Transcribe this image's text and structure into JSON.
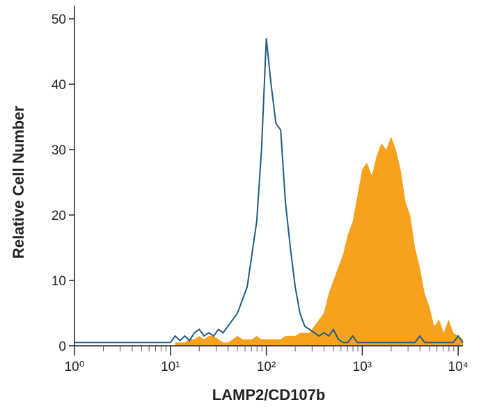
{
  "chart_data": {
    "type": "histogram-overlay",
    "xlabel": "LAMP2/CD107b",
    "ylabel": "Relative Cell Number",
    "xscale": "log",
    "xlim": [
      1,
      11200
    ],
    "ylim": [
      0,
      50
    ],
    "xticks": [
      {
        "value": 1,
        "label": "10⁰"
      },
      {
        "value": 10,
        "label": "10¹"
      },
      {
        "value": 100,
        "label": "10²"
      },
      {
        "value": 1000,
        "label": "10³"
      },
      {
        "value": 10000,
        "label": "10⁴"
      }
    ],
    "yticks": [
      0,
      10,
      20,
      30,
      40,
      50
    ],
    "x": [
      1,
      10,
      11.2,
      12.6,
      14.1,
      15.8,
      17.8,
      20,
      22.4,
      25.1,
      28.2,
      31.6,
      35.5,
      39.8,
      44.7,
      50.1,
      56.2,
      63.1,
      70.8,
      79.4,
      89.1,
      100,
      112,
      126,
      141,
      158,
      178,
      200,
      224,
      251,
      282,
      316,
      355,
      398,
      447,
      501,
      562,
      631,
      708,
      794,
      891,
      1000,
      1120,
      1260,
      1410,
      1580,
      1780,
      2000,
      2240,
      2510,
      2820,
      3160,
      3550,
      3980,
      4470,
      5010,
      5620,
      6310,
      7080,
      7940,
      8910,
      10000,
      11200
    ],
    "series": [
      {
        "style": "filled",
        "color": "#f7a11e",
        "values": [
          null,
          null,
          0.5,
          0.5,
          0.5,
          1,
          1,
          1.5,
          1,
          1.5,
          1.5,
          1,
          0.5,
          0.5,
          1,
          1.5,
          1,
          1,
          1,
          1.5,
          1,
          1,
          1,
          1,
          1,
          1.5,
          1.5,
          1.5,
          2,
          2,
          2,
          3,
          4,
          5,
          8,
          10,
          12,
          14,
          17,
          19,
          23,
          27,
          28,
          26,
          29,
          31,
          30,
          32,
          30,
          27,
          22,
          20,
          15,
          12,
          8,
          6,
          3,
          4,
          2,
          4,
          2,
          1.5,
          1
        ]
      },
      {
        "style": "outline",
        "color": "#1f5a85",
        "values": [
          0.5,
          0.5,
          1.5,
          0.8,
          1.5,
          0.8,
          2,
          2.5,
          1.5,
          2,
          1.5,
          2.5,
          2,
          3,
          4,
          5,
          7,
          9,
          14,
          19,
          30,
          47,
          40,
          34,
          33,
          22,
          15,
          9,
          5,
          3,
          2.5,
          2,
          1.5,
          2,
          1.5,
          2.5,
          1,
          0.5,
          0.5,
          1.5,
          0.5,
          0.5,
          0.5,
          0.5,
          0.5,
          0.5,
          0.5,
          0.5,
          0.5,
          0.5,
          0.5,
          0.5,
          0.5,
          1.5,
          0.5,
          0.5,
          0.5,
          0.5,
          0.5,
          0.5,
          0.5,
          1.5,
          0.5
        ]
      }
    ]
  }
}
